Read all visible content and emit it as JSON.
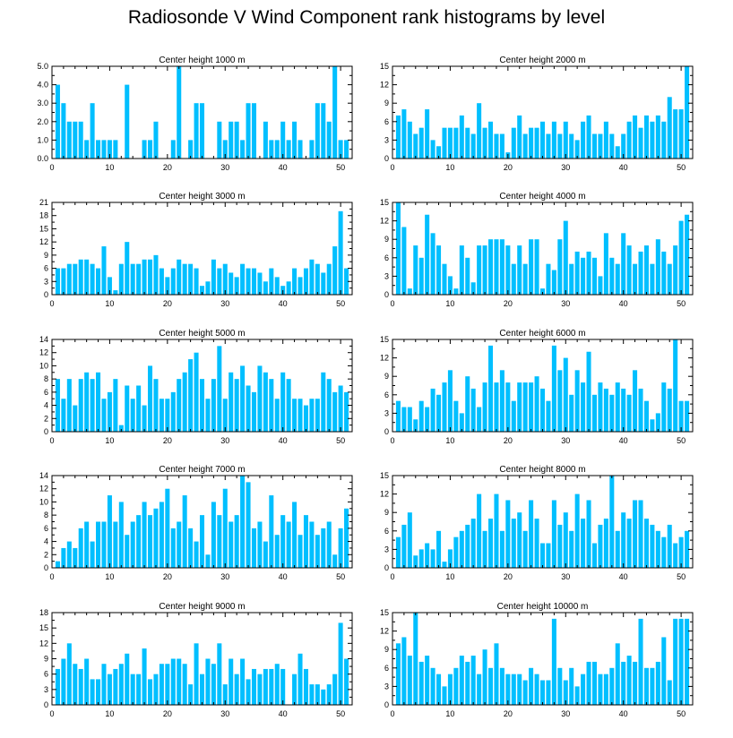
{
  "title": "Radiosonde V Wind Component rank histograms by level",
  "bar_color": "#00bfff",
  "chart_data": [
    {
      "type": "bar",
      "title": "Center height 1000 m",
      "x": [
        1,
        2,
        3,
        4,
        5,
        6,
        7,
        8,
        9,
        10,
        11,
        12,
        13,
        14,
        15,
        16,
        17,
        18,
        19,
        20,
        21,
        22,
        23,
        24,
        25,
        26,
        27,
        28,
        29,
        30,
        31,
        32,
        33,
        34,
        35,
        36,
        37,
        38,
        39,
        40,
        41,
        42,
        43,
        44,
        45,
        46,
        47,
        48,
        49,
        50,
        51
      ],
      "values": [
        4,
        3,
        2,
        2,
        2,
        1,
        3,
        1,
        1,
        1,
        1,
        0,
        4,
        0,
        0,
        1,
        1,
        2,
        0,
        0,
        1,
        5,
        0,
        1,
        3,
        3,
        0,
        0,
        2,
        1,
        2,
        2,
        1,
        3,
        3,
        0,
        2,
        1,
        1,
        2,
        1,
        2,
        1,
        0,
        1,
        3,
        3,
        2,
        5,
        1,
        1
      ],
      "xlim": [
        0,
        52
      ],
      "ylim": [
        0,
        5
      ],
      "yticks": [
        0,
        1,
        2,
        3,
        4,
        5
      ],
      "yticklabels": [
        "0.0",
        "1.0",
        "2.0",
        "3.0",
        "4.0",
        "5.0"
      ],
      "xticks": [
        0,
        10,
        20,
        30,
        40,
        50
      ],
      "xticklabels": [
        "0",
        "10",
        "20",
        "30",
        "40",
        "50"
      ]
    },
    {
      "type": "bar",
      "title": "Center height 2000 m",
      "x": [
        1,
        2,
        3,
        4,
        5,
        6,
        7,
        8,
        9,
        10,
        11,
        12,
        13,
        14,
        15,
        16,
        17,
        18,
        19,
        20,
        21,
        22,
        23,
        24,
        25,
        26,
        27,
        28,
        29,
        30,
        31,
        32,
        33,
        34,
        35,
        36,
        37,
        38,
        39,
        40,
        41,
        42,
        43,
        44,
        45,
        46,
        47,
        48,
        49,
        50,
        51
      ],
      "values": [
        7,
        8,
        6,
        4,
        5,
        8,
        3,
        2,
        5,
        5,
        5,
        7,
        5,
        4,
        9,
        5,
        6,
        4,
        4,
        1,
        5,
        7,
        4,
        5,
        5,
        6,
        4,
        6,
        4,
        6,
        4,
        3,
        6,
        7,
        4,
        4,
        6,
        4,
        2,
        4,
        6,
        7,
        5,
        7,
        6,
        7,
        6,
        10,
        8,
        8,
        15
      ],
      "xlim": [
        0,
        52
      ],
      "ylim": [
        0,
        15
      ],
      "yticks": [
        0,
        3,
        6,
        9,
        12,
        15
      ],
      "yticklabels": [
        "0",
        "3",
        "6",
        "9",
        "12",
        "15"
      ],
      "xticks": [
        0,
        10,
        20,
        30,
        40,
        50
      ],
      "xticklabels": [
        "0",
        "10",
        "20",
        "30",
        "40",
        "50"
      ]
    },
    {
      "type": "bar",
      "title": "Center height 3000 m",
      "x": [
        1,
        2,
        3,
        4,
        5,
        6,
        7,
        8,
        9,
        10,
        11,
        12,
        13,
        14,
        15,
        16,
        17,
        18,
        19,
        20,
        21,
        22,
        23,
        24,
        25,
        26,
        27,
        28,
        29,
        30,
        31,
        32,
        33,
        34,
        35,
        36,
        37,
        38,
        39,
        40,
        41,
        42,
        43,
        44,
        45,
        46,
        47,
        48,
        49,
        50,
        51
      ],
      "values": [
        6,
        6,
        7,
        7,
        8,
        8,
        7,
        6,
        11,
        4,
        1,
        7,
        12,
        7,
        7,
        8,
        8,
        9,
        6,
        4,
        6,
        8,
        7,
        7,
        6,
        2,
        3,
        8,
        6,
        7,
        5,
        4,
        7,
        6,
        6,
        5,
        3,
        6,
        4,
        2,
        3,
        6,
        4,
        6,
        8,
        7,
        5,
        7,
        11,
        19,
        6
      ],
      "xlim": [
        0,
        52
      ],
      "ylim": [
        0,
        21
      ],
      "yticks": [
        0,
        3,
        6,
        9,
        12,
        15,
        18,
        21
      ],
      "yticklabels": [
        "0",
        "3",
        "6",
        "9",
        "12",
        "15",
        "18",
        "21"
      ],
      "xticks": [
        0,
        10,
        20,
        30,
        40,
        50
      ],
      "xticklabels": [
        "0",
        "10",
        "20",
        "30",
        "40",
        "50"
      ]
    },
    {
      "type": "bar",
      "title": "Center height 4000 m",
      "x": [
        1,
        2,
        3,
        4,
        5,
        6,
        7,
        8,
        9,
        10,
        11,
        12,
        13,
        14,
        15,
        16,
        17,
        18,
        19,
        20,
        21,
        22,
        23,
        24,
        25,
        26,
        27,
        28,
        29,
        30,
        31,
        32,
        33,
        34,
        35,
        36,
        37,
        38,
        39,
        40,
        41,
        42,
        43,
        44,
        45,
        46,
        47,
        48,
        49,
        50,
        51
      ],
      "values": [
        15,
        11,
        1,
        8,
        6,
        13,
        10,
        8,
        5,
        3,
        1,
        8,
        6,
        2,
        8,
        8,
        9,
        9,
        9,
        8,
        5,
        8,
        5,
        9,
        9,
        1,
        5,
        4,
        9,
        12,
        5,
        7,
        6,
        7,
        6,
        3,
        10,
        6,
        5,
        10,
        8,
        5,
        7,
        8,
        5,
        9,
        7,
        5,
        8,
        12,
        13
      ],
      "xlim": [
        0,
        52
      ],
      "ylim": [
        0,
        15
      ],
      "yticks": [
        0,
        3,
        6,
        9,
        12,
        15
      ],
      "yticklabels": [
        "0",
        "3",
        "6",
        "9",
        "12",
        "15"
      ],
      "xticks": [
        0,
        10,
        20,
        30,
        40,
        50
      ],
      "xticklabels": [
        "0",
        "10",
        "20",
        "30",
        "40",
        "50"
      ]
    },
    {
      "type": "bar",
      "title": "Center height 5000 m",
      "x": [
        1,
        2,
        3,
        4,
        5,
        6,
        7,
        8,
        9,
        10,
        11,
        12,
        13,
        14,
        15,
        16,
        17,
        18,
        19,
        20,
        21,
        22,
        23,
        24,
        25,
        26,
        27,
        28,
        29,
        30,
        31,
        32,
        33,
        34,
        35,
        36,
        37,
        38,
        39,
        40,
        41,
        42,
        43,
        44,
        45,
        46,
        47,
        48,
        49,
        50,
        51
      ],
      "values": [
        8,
        5,
        8,
        4,
        8,
        9,
        8,
        9,
        5,
        6,
        8,
        1,
        7,
        5,
        7,
        4,
        10,
        8,
        5,
        5,
        6,
        8,
        9,
        11,
        12,
        8,
        5,
        8,
        13,
        5,
        9,
        8,
        10,
        7,
        6,
        10,
        9,
        8,
        5,
        9,
        8,
        5,
        5,
        4,
        5,
        5,
        9,
        8,
        6,
        7,
        6
      ],
      "xlim": [
        0,
        52
      ],
      "ylim": [
        0,
        14
      ],
      "yticks": [
        0,
        2,
        4,
        6,
        8,
        10,
        12,
        14
      ],
      "yticklabels": [
        "0",
        "2",
        "4",
        "6",
        "8",
        "10",
        "12",
        "14"
      ],
      "xticks": [
        0,
        10,
        20,
        30,
        40,
        50
      ],
      "xticklabels": [
        "0",
        "10",
        "20",
        "30",
        "40",
        "50"
      ]
    },
    {
      "type": "bar",
      "title": "Center height 6000 m",
      "x": [
        1,
        2,
        3,
        4,
        5,
        6,
        7,
        8,
        9,
        10,
        11,
        12,
        13,
        14,
        15,
        16,
        17,
        18,
        19,
        20,
        21,
        22,
        23,
        24,
        25,
        26,
        27,
        28,
        29,
        30,
        31,
        32,
        33,
        34,
        35,
        36,
        37,
        38,
        39,
        40,
        41,
        42,
        43,
        44,
        45,
        46,
        47,
        48,
        49,
        50,
        51
      ],
      "values": [
        5,
        4,
        4,
        2,
        5,
        4,
        7,
        6,
        8,
        10,
        5,
        3,
        9,
        7,
        4,
        8,
        14,
        8,
        10,
        8,
        5,
        8,
        8,
        8,
        9,
        7,
        5,
        14,
        10,
        12,
        6,
        10,
        8,
        13,
        6,
        8,
        7,
        6,
        8,
        7,
        6,
        10,
        7,
        5,
        2,
        3,
        8,
        7,
        15,
        5,
        5
      ],
      "xlim": [
        0,
        52
      ],
      "ylim": [
        0,
        15
      ],
      "yticks": [
        0,
        3,
        6,
        9,
        12,
        15
      ],
      "yticklabels": [
        "0",
        "3",
        "6",
        "9",
        "12",
        "15"
      ],
      "xticks": [
        0,
        10,
        20,
        30,
        40,
        50
      ],
      "xticklabels": [
        "0",
        "10",
        "20",
        "30",
        "40",
        "50"
      ]
    },
    {
      "type": "bar",
      "title": "Center height 7000 m",
      "x": [
        1,
        2,
        3,
        4,
        5,
        6,
        7,
        8,
        9,
        10,
        11,
        12,
        13,
        14,
        15,
        16,
        17,
        18,
        19,
        20,
        21,
        22,
        23,
        24,
        25,
        26,
        27,
        28,
        29,
        30,
        31,
        32,
        33,
        34,
        35,
        36,
        37,
        38,
        39,
        40,
        41,
        42,
        43,
        44,
        45,
        46,
        47,
        48,
        49,
        50,
        51
      ],
      "values": [
        1,
        3,
        4,
        3,
        6,
        7,
        4,
        7,
        7,
        11,
        7,
        10,
        5,
        7,
        8,
        10,
        8,
        9,
        10,
        12,
        6,
        7,
        11,
        6,
        4,
        8,
        2,
        10,
        8,
        12,
        7,
        8,
        14,
        13,
        6,
        7,
        4,
        11,
        5,
        8,
        7,
        10,
        5,
        8,
        7,
        5,
        6,
        7,
        2,
        6,
        9
      ],
      "xlim": [
        0,
        52
      ],
      "ylim": [
        0,
        14
      ],
      "yticks": [
        0,
        2,
        4,
        6,
        8,
        10,
        12,
        14
      ],
      "yticklabels": [
        "0",
        "2",
        "4",
        "6",
        "8",
        "10",
        "12",
        "14"
      ],
      "xticks": [
        0,
        10,
        20,
        30,
        40,
        50
      ],
      "xticklabels": [
        "0",
        "10",
        "20",
        "30",
        "40",
        "50"
      ]
    },
    {
      "type": "bar",
      "title": "Center height 8000 m",
      "x": [
        1,
        2,
        3,
        4,
        5,
        6,
        7,
        8,
        9,
        10,
        11,
        12,
        13,
        14,
        15,
        16,
        17,
        18,
        19,
        20,
        21,
        22,
        23,
        24,
        25,
        26,
        27,
        28,
        29,
        30,
        31,
        32,
        33,
        34,
        35,
        36,
        37,
        38,
        39,
        40,
        41,
        42,
        43,
        44,
        45,
        46,
        47,
        48,
        49,
        50,
        51
      ],
      "values": [
        5,
        7,
        9,
        2,
        3,
        4,
        3,
        6,
        1,
        3,
        5,
        6,
        7,
        8,
        12,
        6,
        8,
        12,
        6,
        11,
        8,
        9,
        6,
        11,
        8,
        4,
        4,
        11,
        7,
        9,
        6,
        12,
        8,
        11,
        4,
        7,
        8,
        15,
        6,
        9,
        8,
        11,
        11,
        8,
        7,
        6,
        5,
        7,
        4,
        5,
        6
      ],
      "xlim": [
        0,
        52
      ],
      "ylim": [
        0,
        15
      ],
      "yticks": [
        0,
        3,
        6,
        9,
        12,
        15
      ],
      "yticklabels": [
        "0",
        "3",
        "6",
        "9",
        "12",
        "15"
      ],
      "xticks": [
        0,
        10,
        20,
        30,
        40,
        50
      ],
      "xticklabels": [
        "0",
        "10",
        "20",
        "30",
        "40",
        "50"
      ]
    },
    {
      "type": "bar",
      "title": "Center height 9000 m",
      "x": [
        1,
        2,
        3,
        4,
        5,
        6,
        7,
        8,
        9,
        10,
        11,
        12,
        13,
        14,
        15,
        16,
        17,
        18,
        19,
        20,
        21,
        22,
        23,
        24,
        25,
        26,
        27,
        28,
        29,
        30,
        31,
        32,
        33,
        34,
        35,
        36,
        37,
        38,
        39,
        40,
        41,
        42,
        43,
        44,
        45,
        46,
        47,
        48,
        49,
        50,
        51
      ],
      "values": [
        7,
        9,
        12,
        8,
        7,
        9,
        5,
        5,
        8,
        6,
        7,
        8,
        10,
        6,
        6,
        11,
        5,
        6,
        8,
        8,
        9,
        9,
        8,
        4,
        12,
        6,
        9,
        8,
        12,
        4,
        9,
        6,
        9,
        5,
        7,
        6,
        7,
        7,
        8,
        7,
        0,
        6,
        10,
        7,
        4,
        4,
        3,
        4,
        6,
        16,
        9
      ],
      "xlim": [
        0,
        52
      ],
      "ylim": [
        0,
        18
      ],
      "yticks": [
        0,
        3,
        6,
        9,
        12,
        15,
        18
      ],
      "yticklabels": [
        "0",
        "3",
        "6",
        "9",
        "12",
        "15",
        "18"
      ],
      "xticks": [
        0,
        10,
        20,
        30,
        40,
        50
      ],
      "xticklabels": [
        "0",
        "10",
        "20",
        "30",
        "40",
        "50"
      ]
    },
    {
      "type": "bar",
      "title": "Center height 10000 m",
      "x": [
        1,
        2,
        3,
        4,
        5,
        6,
        7,
        8,
        9,
        10,
        11,
        12,
        13,
        14,
        15,
        16,
        17,
        18,
        19,
        20,
        21,
        22,
        23,
        24,
        25,
        26,
        27,
        28,
        29,
        30,
        31,
        32,
        33,
        34,
        35,
        36,
        37,
        38,
        39,
        40,
        41,
        42,
        43,
        44,
        45,
        46,
        47,
        48,
        49,
        50,
        51
      ],
      "values": [
        10,
        11,
        8,
        15,
        7,
        8,
        6,
        5,
        3,
        5,
        6,
        8,
        7,
        8,
        5,
        9,
        6,
        10,
        6,
        5,
        5,
        5,
        4,
        6,
        5,
        4,
        4,
        14,
        6,
        4,
        6,
        3,
        5,
        7,
        7,
        5,
        5,
        6,
        10,
        7,
        8,
        7,
        14,
        6,
        6,
        7,
        11,
        4,
        14,
        14,
        14
      ],
      "xlim": [
        0,
        52
      ],
      "ylim": [
        0,
        15
      ],
      "yticks": [
        0,
        3,
        6,
        9,
        12,
        15
      ],
      "yticklabels": [
        "0",
        "3",
        "6",
        "9",
        "12",
        "15"
      ],
      "xticks": [
        0,
        10,
        20,
        30,
        40,
        50
      ],
      "xticklabels": [
        "0",
        "10",
        "20",
        "30",
        "40",
        "50"
      ]
    }
  ]
}
